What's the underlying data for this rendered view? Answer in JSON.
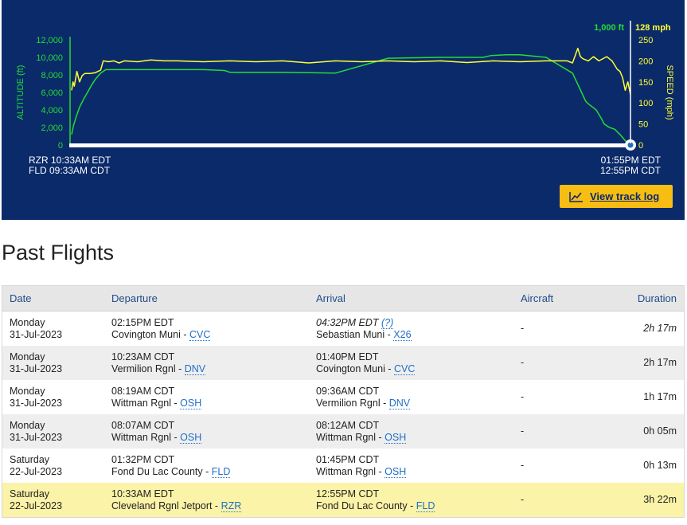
{
  "chart_data": {
    "type": "line",
    "series": [
      {
        "name": "ALTITUDE (ft)",
        "color": "#22dd33",
        "axis": "left",
        "x": [
          0,
          0.7,
          1.8,
          3,
          4.5,
          6,
          7.5,
          9,
          11,
          13,
          16,
          20,
          25,
          30,
          40,
          50,
          58,
          60,
          63,
          80,
          100,
          120,
          140,
          150,
          155,
          156,
          159,
          165,
          170,
          180,
          190,
          195,
          196,
          199,
          201,
          202,
          204,
          206,
          208,
          210,
          212
        ],
        "values": [
          1200,
          2200,
          3300,
          4300,
          5200,
          6000,
          6800,
          7500,
          8200,
          8600,
          8600,
          8600,
          8600,
          8600,
          8600,
          8600,
          8500,
          8300,
          8300,
          8300,
          8200,
          9900,
          10000,
          10000,
          10000,
          10000,
          10200,
          10300,
          10300,
          10000,
          8200,
          5000,
          4700,
          4000,
          3000,
          2400,
          2000,
          1800,
          1200,
          500,
          0
        ]
      },
      {
        "name": "SPEED (mph)",
        "color": "#ffff33",
        "axis": "right",
        "x": [
          0,
          0.5,
          1,
          2,
          3,
          4,
          5,
          7,
          9,
          11,
          12,
          14,
          16,
          18,
          20,
          25,
          30,
          35,
          40,
          50,
          60,
          70,
          80,
          90,
          100,
          110,
          120,
          130,
          140,
          150,
          160,
          170,
          180,
          188,
          190,
          192,
          193,
          194,
          196,
          198,
          200,
          203,
          205,
          207,
          208,
          209,
          210,
          211,
          212
        ],
        "values": [
          130,
          150,
          140,
          175,
          150,
          165,
          170,
          170,
          172,
          178,
          200,
          198,
          200,
          195,
          200,
          198,
          202,
          200,
          200,
          198,
          200,
          198,
          200,
          195,
          200,
          198,
          200,
          198,
          200,
          196,
          200,
          198,
          200,
          200,
          195,
          230,
          210,
          205,
          200,
          210,
          200,
          210,
          200,
          180,
          175,
          160,
          130,
          150,
          120
        ]
      }
    ],
    "yaxis_left": {
      "label": "ALTITUDE (ft)",
      "ticks": [
        "12,000",
        "10,000",
        "8,000",
        "6,000",
        "4,000",
        "2,000",
        "0"
      ],
      "range": [
        0,
        12000
      ]
    },
    "yaxis_right": {
      "label": "SPEED (mph)",
      "ticks": [
        "250",
        "200",
        "150",
        "100",
        "50",
        "0"
      ],
      "range": [
        0,
        250
      ]
    },
    "current_readout": {
      "altitude": "1,000 ft",
      "speed": "128 mph"
    },
    "start_time": {
      "line1": "RZR 10:33AM EDT",
      "line2": "FLD 09:33AM CDT"
    },
    "end_time": {
      "line1": "01:55PM EDT",
      "line2": "12:55PM CDT"
    },
    "grid": false
  },
  "track_log_label": "View track log",
  "past_flights_title": "Past Flights",
  "table": {
    "headers": {
      "date": "Date",
      "departure": "Departure",
      "arrival": "Arrival",
      "aircraft": "Aircraft",
      "duration": "Duration"
    },
    "rows": [
      {
        "day": "Monday",
        "date": "31-Jul-2023",
        "dep_time": "02:15PM EDT",
        "dep_airport": "Covington Muni - ",
        "dep_code": "CVC",
        "arr_time": "04:32PM EDT ",
        "arr_q": "(?)",
        "arr_airport": "Sebastian Muni - ",
        "arr_code": "X26",
        "aircraft": "-",
        "duration": "2h 17m"
      },
      {
        "day": "Monday",
        "date": "31-Jul-2023",
        "dep_time": "10:23AM CDT",
        "dep_airport": "Vermilion Rgnl - ",
        "dep_code": "DNV",
        "arr_time": "01:40PM EDT",
        "arr_q": "",
        "arr_airport": "Covington Muni - ",
        "arr_code": "CVC",
        "aircraft": "-",
        "duration": "2h 17m"
      },
      {
        "day": "Monday",
        "date": "31-Jul-2023",
        "dep_time": "08:19AM CDT",
        "dep_airport": "Wittman Rgnl - ",
        "dep_code": "OSH",
        "arr_time": "09:36AM CDT",
        "arr_q": "",
        "arr_airport": "Vermilion Rgnl - ",
        "arr_code": "DNV",
        "aircraft": "-",
        "duration": "1h 17m"
      },
      {
        "day": "Monday",
        "date": "31-Jul-2023",
        "dep_time": "08:07AM CDT",
        "dep_airport": "Wittman Rgnl - ",
        "dep_code": "OSH",
        "arr_time": "08:12AM CDT",
        "arr_q": "",
        "arr_airport": "Wittman Rgnl - ",
        "arr_code": "OSH",
        "aircraft": "-",
        "duration": "0h 05m"
      },
      {
        "day": "Saturday",
        "date": "22-Jul-2023",
        "dep_time": "01:32PM CDT",
        "dep_airport": "Fond Du Lac County - ",
        "dep_code": "FLD",
        "arr_time": "01:45PM CDT",
        "arr_q": "",
        "arr_airport": "Wittman Rgnl - ",
        "arr_code": "OSH",
        "aircraft": "-",
        "duration": "0h 13m"
      },
      {
        "day": "Saturday",
        "date": "22-Jul-2023",
        "dep_time": "10:33AM EDT",
        "dep_airport": "Cleveland Rgnl Jetport - ",
        "dep_code": "RZR",
        "arr_time": "12:55PM CDT",
        "arr_q": "",
        "arr_airport": "Fond Du Lac County - ",
        "arr_code": "FLD",
        "aircraft": "-",
        "duration": "3h 22m"
      }
    ]
  },
  "colors": {
    "panel": "#0b2a6a",
    "altitude": "#22dd33",
    "speed": "#ffff33",
    "button": "#f7bd13",
    "link": "#1e6fc6",
    "highlight": "#fbf3a7"
  }
}
